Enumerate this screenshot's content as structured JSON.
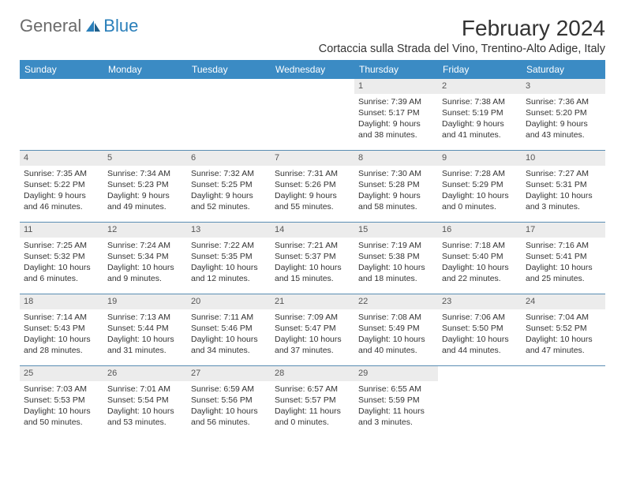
{
  "logo": {
    "general": "General",
    "blue": "Blue"
  },
  "title": "February 2024",
  "location": "Cortaccia sulla Strada del Vino, Trentino-Alto Adige, Italy",
  "colors": {
    "header_bg": "#3b8bc4",
    "header_text": "#ffffff",
    "daynum_bg": "#ececec",
    "border": "#5a8db3",
    "text": "#333333",
    "logo_gray": "#6b6b6b",
    "logo_blue": "#2a7fba"
  },
  "font": {
    "title_size": 28,
    "location_size": 14.5,
    "header_size": 12,
    "body_size": 10.5
  },
  "weekdays": [
    "Sunday",
    "Monday",
    "Tuesday",
    "Wednesday",
    "Thursday",
    "Friday",
    "Saturday"
  ],
  "lead_blanks": 4,
  "days": [
    {
      "n": "1",
      "sunrise": "7:39 AM",
      "sunset": "5:17 PM",
      "daylight": "9 hours and 38 minutes."
    },
    {
      "n": "2",
      "sunrise": "7:38 AM",
      "sunset": "5:19 PM",
      "daylight": "9 hours and 41 minutes."
    },
    {
      "n": "3",
      "sunrise": "7:36 AM",
      "sunset": "5:20 PM",
      "daylight": "9 hours and 43 minutes."
    },
    {
      "n": "4",
      "sunrise": "7:35 AM",
      "sunset": "5:22 PM",
      "daylight": "9 hours and 46 minutes."
    },
    {
      "n": "5",
      "sunrise": "7:34 AM",
      "sunset": "5:23 PM",
      "daylight": "9 hours and 49 minutes."
    },
    {
      "n": "6",
      "sunrise": "7:32 AM",
      "sunset": "5:25 PM",
      "daylight": "9 hours and 52 minutes."
    },
    {
      "n": "7",
      "sunrise": "7:31 AM",
      "sunset": "5:26 PM",
      "daylight": "9 hours and 55 minutes."
    },
    {
      "n": "8",
      "sunrise": "7:30 AM",
      "sunset": "5:28 PM",
      "daylight": "9 hours and 58 minutes."
    },
    {
      "n": "9",
      "sunrise": "7:28 AM",
      "sunset": "5:29 PM",
      "daylight": "10 hours and 0 minutes."
    },
    {
      "n": "10",
      "sunrise": "7:27 AM",
      "sunset": "5:31 PM",
      "daylight": "10 hours and 3 minutes."
    },
    {
      "n": "11",
      "sunrise": "7:25 AM",
      "sunset": "5:32 PM",
      "daylight": "10 hours and 6 minutes."
    },
    {
      "n": "12",
      "sunrise": "7:24 AM",
      "sunset": "5:34 PM",
      "daylight": "10 hours and 9 minutes."
    },
    {
      "n": "13",
      "sunrise": "7:22 AM",
      "sunset": "5:35 PM",
      "daylight": "10 hours and 12 minutes."
    },
    {
      "n": "14",
      "sunrise": "7:21 AM",
      "sunset": "5:37 PM",
      "daylight": "10 hours and 15 minutes."
    },
    {
      "n": "15",
      "sunrise": "7:19 AM",
      "sunset": "5:38 PM",
      "daylight": "10 hours and 18 minutes."
    },
    {
      "n": "16",
      "sunrise": "7:18 AM",
      "sunset": "5:40 PM",
      "daylight": "10 hours and 22 minutes."
    },
    {
      "n": "17",
      "sunrise": "7:16 AM",
      "sunset": "5:41 PM",
      "daylight": "10 hours and 25 minutes."
    },
    {
      "n": "18",
      "sunrise": "7:14 AM",
      "sunset": "5:43 PM",
      "daylight": "10 hours and 28 minutes."
    },
    {
      "n": "19",
      "sunrise": "7:13 AM",
      "sunset": "5:44 PM",
      "daylight": "10 hours and 31 minutes."
    },
    {
      "n": "20",
      "sunrise": "7:11 AM",
      "sunset": "5:46 PM",
      "daylight": "10 hours and 34 minutes."
    },
    {
      "n": "21",
      "sunrise": "7:09 AM",
      "sunset": "5:47 PM",
      "daylight": "10 hours and 37 minutes."
    },
    {
      "n": "22",
      "sunrise": "7:08 AM",
      "sunset": "5:49 PM",
      "daylight": "10 hours and 40 minutes."
    },
    {
      "n": "23",
      "sunrise": "7:06 AM",
      "sunset": "5:50 PM",
      "daylight": "10 hours and 44 minutes."
    },
    {
      "n": "24",
      "sunrise": "7:04 AM",
      "sunset": "5:52 PM",
      "daylight": "10 hours and 47 minutes."
    },
    {
      "n": "25",
      "sunrise": "7:03 AM",
      "sunset": "5:53 PM",
      "daylight": "10 hours and 50 minutes."
    },
    {
      "n": "26",
      "sunrise": "7:01 AM",
      "sunset": "5:54 PM",
      "daylight": "10 hours and 53 minutes."
    },
    {
      "n": "27",
      "sunrise": "6:59 AM",
      "sunset": "5:56 PM",
      "daylight": "10 hours and 56 minutes."
    },
    {
      "n": "28",
      "sunrise": "6:57 AM",
      "sunset": "5:57 PM",
      "daylight": "11 hours and 0 minutes."
    },
    {
      "n": "29",
      "sunrise": "6:55 AM",
      "sunset": "5:59 PM",
      "daylight": "11 hours and 3 minutes."
    }
  ],
  "labels": {
    "sunrise": "Sunrise: ",
    "sunset": "Sunset: ",
    "daylight": "Daylight: "
  }
}
